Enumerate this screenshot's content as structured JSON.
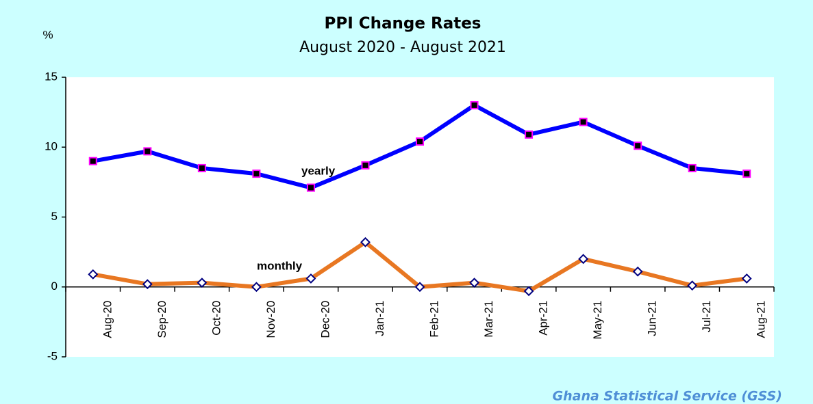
{
  "chart_data": {
    "type": "line",
    "title": "PPI Change Rates",
    "subtitle": "August 2020 - August 2021",
    "y_label": "%",
    "source": "Ghana Statistical Service (GSS)",
    "categories": [
      "Aug-20",
      "Sep-20",
      "Oct-20",
      "Nov-20",
      "Dec-20",
      "Jan-21",
      "Feb-21",
      "Mar-21",
      "Apr-21",
      "May-21",
      "Jun-21",
      "Jul-21",
      "Aug-21"
    ],
    "series": [
      {
        "name": "yearly",
        "color": "#0000ff",
        "marker": "square",
        "marker_fill": "#000000",
        "marker_edge": "#ff00ff",
        "values": [
          9.0,
          9.7,
          8.5,
          8.1,
          7.1,
          8.7,
          10.4,
          13.0,
          10.9,
          11.8,
          10.1,
          8.5,
          8.1
        ]
      },
      {
        "name": "monthly",
        "color": "#e87722",
        "marker": "diamond",
        "marker_fill": "#ffffff",
        "marker_edge": "#000080",
        "values": [
          0.9,
          0.2,
          0.3,
          0.0,
          0.6,
          3.2,
          0.0,
          0.3,
          -0.3,
          2.0,
          1.1,
          0.1,
          0.6
        ]
      }
    ],
    "ylim": [
      -5,
      15
    ],
    "yticks": [
      -5,
      0,
      5,
      10,
      15
    ],
    "grid": false
  }
}
